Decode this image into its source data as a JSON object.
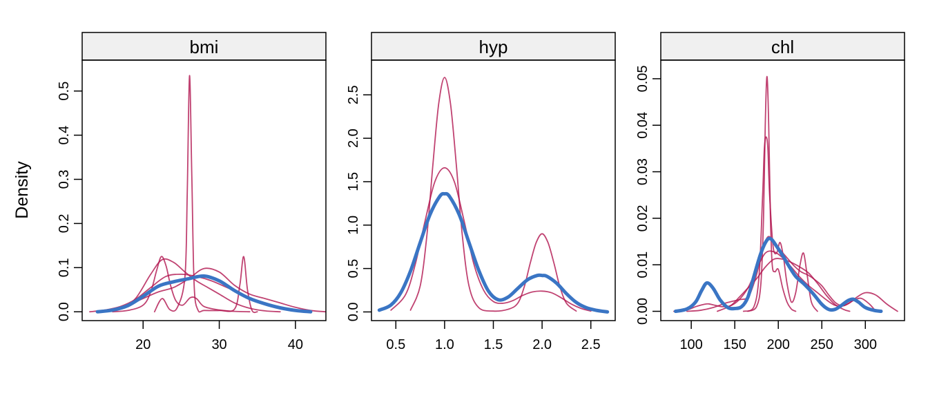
{
  "chart_data": {
    "type": "line",
    "ylabel": "Density",
    "colors": {
      "observed": "#3a75c4",
      "imputed": "#b0134d",
      "strip_fill": "#f0f0f0"
    },
    "panels": [
      {
        "title": "bmi",
        "xlim": [
          12,
          44
        ],
        "ylim": [
          -0.02,
          0.57
        ],
        "xticks": [
          20,
          30,
          40
        ],
        "xtick_labels": [
          "20",
          "30",
          "40"
        ],
        "yticks": [
          0.0,
          0.1,
          0.2,
          0.3,
          0.4,
          0.5
        ],
        "ytick_labels": [
          "0.0",
          "0.1",
          "0.2",
          "0.3",
          "0.4",
          "0.5"
        ],
        "series": [
          {
            "role": "observed",
            "x": [
              14,
              16,
              18,
              20,
              22,
              24,
              26,
              28,
              30,
              32,
              34,
              36,
              38,
              40,
              42
            ],
            "y": [
              0.0,
              0.004,
              0.014,
              0.035,
              0.058,
              0.068,
              0.075,
              0.081,
              0.07,
              0.048,
              0.03,
              0.018,
              0.009,
              0.003,
              0.0
            ]
          },
          {
            "role": "imputed",
            "x": [
              21.5,
              22.5,
              23.5,
              24.5,
              25.5,
              25.8,
              26.1,
              26.4,
              26.7,
              27.2,
              28,
              30,
              32,
              32.7,
              33.2,
              33.7,
              34.3,
              35
            ],
            "y": [
              0.0,
              0.03,
              0.005,
              0.01,
              0.08,
              0.27,
              0.535,
              0.3,
              0.06,
              0.004,
              0.003,
              0.003,
              0.006,
              0.06,
              0.125,
              0.05,
              0.003,
              0.0
            ]
          },
          {
            "role": "imputed",
            "x": [
              16,
              18,
              20,
              21,
              21.8,
              22.4,
              23,
              23.6,
              24.3,
              25.2,
              26.2,
              27,
              28,
              30,
              32,
              34
            ],
            "y": [
              0.0,
              0.003,
              0.015,
              0.045,
              0.095,
              0.125,
              0.105,
              0.06,
              0.025,
              0.015,
              0.032,
              0.03,
              0.012,
              0.004,
              0.001,
              0.0
            ]
          },
          {
            "role": "imputed",
            "x": [
              15,
              17,
              19,
              21,
              22.5,
              24,
              25.5,
              27,
              28.5,
              30,
              32,
              34,
              36,
              38
            ],
            "y": [
              0.0,
              0.006,
              0.03,
              0.085,
              0.118,
              0.112,
              0.09,
              0.07,
              0.055,
              0.04,
              0.02,
              0.008,
              0.002,
              0.0
            ]
          },
          {
            "role": "imputed",
            "x": [
              14,
              16,
              18,
              20,
              22,
              24,
              26,
              28,
              30,
              32,
              34,
              36,
              38,
              40,
              42,
              44
            ],
            "y": [
              0.0,
              0.005,
              0.015,
              0.03,
              0.045,
              0.055,
              0.075,
              0.098,
              0.09,
              0.06,
              0.04,
              0.03,
              0.02,
              0.01,
              0.003,
              0.0
            ]
          },
          {
            "role": "imputed",
            "x": [
              13,
              15,
              17,
              19,
              21,
              23,
              25,
              27,
              29,
              31,
              33,
              35,
              37,
              39,
              41
            ],
            "y": [
              0.0,
              0.004,
              0.012,
              0.028,
              0.055,
              0.08,
              0.085,
              0.08,
              0.07,
              0.055,
              0.04,
              0.025,
              0.012,
              0.004,
              0.0
            ]
          }
        ]
      },
      {
        "title": "hyp",
        "xlim": [
          0.25,
          2.75
        ],
        "ylim": [
          -0.1,
          2.9
        ],
        "xticks": [
          0.5,
          1.0,
          1.5,
          2.0,
          2.5
        ],
        "xtick_labels": [
          "0.5",
          "1.0",
          "1.5",
          "2.0",
          "2.5"
        ],
        "yticks": [
          0.0,
          0.5,
          1.0,
          1.5,
          2.0,
          2.5
        ],
        "ytick_labels": [
          "0.0",
          "0.5",
          "1.0",
          "1.5",
          "2.0",
          "2.5"
        ],
        "series": [
          {
            "role": "observed",
            "x": [
              0.33,
              0.45,
              0.55,
              0.65,
              0.75,
              0.85,
              0.95,
              1.0,
              1.05,
              1.15,
              1.25,
              1.35,
              1.45,
              1.55,
              1.65,
              1.75,
              1.85,
              1.95,
              2.0,
              2.05,
              2.15,
              2.25,
              2.35,
              2.45,
              2.55,
              2.67
            ],
            "y": [
              0.02,
              0.08,
              0.22,
              0.47,
              0.8,
              1.12,
              1.33,
              1.36,
              1.33,
              1.12,
              0.8,
              0.48,
              0.24,
              0.14,
              0.17,
              0.27,
              0.37,
              0.42,
              0.42,
              0.41,
              0.33,
              0.21,
              0.11,
              0.05,
              0.02,
              0.0
            ]
          },
          {
            "role": "imputed",
            "x": [
              0.65,
              0.75,
              0.82,
              0.88,
              0.94,
              1.0,
              1.06,
              1.12,
              1.18,
              1.25,
              1.35,
              1.5,
              1.65,
              1.75,
              1.82,
              1.88,
              1.94,
              2.0,
              2.06,
              2.12,
              2.18,
              2.25,
              2.35
            ],
            "y": [
              0.02,
              0.3,
              0.9,
              1.7,
              2.4,
              2.7,
              2.4,
              1.7,
              0.9,
              0.3,
              0.05,
              0.01,
              0.03,
              0.1,
              0.3,
              0.57,
              0.8,
              0.9,
              0.8,
              0.57,
              0.3,
              0.1,
              0.01
            ]
          },
          {
            "role": "imputed",
            "x": [
              0.45,
              0.6,
              0.7,
              0.8,
              0.9,
              1.0,
              1.1,
              1.2,
              1.3,
              1.4,
              1.5,
              1.6,
              1.7,
              1.8,
              1.9,
              2.0,
              2.1,
              2.2,
              2.3,
              2.4,
              2.5
            ],
            "y": [
              0.02,
              0.2,
              0.55,
              1.05,
              1.5,
              1.66,
              1.5,
              1.05,
              0.55,
              0.25,
              0.12,
              0.1,
              0.13,
              0.19,
              0.23,
              0.24,
              0.22,
              0.16,
              0.09,
              0.04,
              0.01
            ]
          }
        ]
      },
      {
        "title": "chl",
        "xlim": [
          65,
          345
        ],
        "ylim": [
          -0.002,
          0.054
        ],
        "xticks": [
          100,
          150,
          200,
          250,
          300
        ],
        "xtick_labels": [
          "100",
          "150",
          "200",
          "250",
          "300"
        ],
        "yticks": [
          0.0,
          0.01,
          0.02,
          0.03,
          0.04,
          0.05
        ],
        "ytick_labels": [
          "0.00",
          "0.01",
          "0.02",
          "0.03",
          "0.04",
          "0.05"
        ],
        "series": [
          {
            "role": "observed",
            "x": [
              82,
              95,
              105,
              112,
              118,
              125,
              133,
              142,
              150,
              158,
              165,
              172,
              180,
              187,
              192,
              198,
              205,
              212,
              220,
              230,
              240,
              250,
              258,
              265,
              272,
              280,
              286,
              292,
              300,
              310,
              318
            ],
            "y": [
              0.0,
              0.0005,
              0.002,
              0.0045,
              0.0061,
              0.005,
              0.0025,
              0.0008,
              0.0006,
              0.001,
              0.003,
              0.0075,
              0.0125,
              0.0153,
              0.0155,
              0.014,
              0.012,
              0.0098,
              0.0075,
              0.0058,
              0.0038,
              0.0015,
              0.0004,
              0.0004,
              0.0012,
              0.0023,
              0.0026,
              0.002,
              0.0008,
              0.0002,
              0.0
            ]
          },
          {
            "role": "imputed",
            "x": [
              165,
              175,
              180,
              183,
              185,
              187,
              189,
              191,
              193,
              196,
              200,
              205,
              210,
              215,
              220
            ],
            "y": [
              0.0,
              0.001,
              0.006,
              0.02,
              0.04,
              0.0505,
              0.04,
              0.02,
              0.01,
              0.0085,
              0.009,
              0.005,
              0.002,
              0.0005,
              0.0
            ]
          },
          {
            "role": "imputed",
            "x": [
              160,
              172,
              178,
              182,
              184,
              186,
              188,
              190,
              194,
              198,
              202,
              206,
              210,
              215,
              220,
              225,
              229,
              233,
              238,
              245
            ],
            "y": [
              0.0,
              0.001,
              0.008,
              0.025,
              0.035,
              0.0375,
              0.035,
              0.025,
              0.014,
              0.0125,
              0.0148,
              0.0115,
              0.006,
              0.002,
              0.004,
              0.01,
              0.0125,
              0.008,
              0.002,
              0.0
            ]
          },
          {
            "role": "imputed",
            "x": [
              80,
              95,
              105,
              115,
              120,
              125,
              135,
              145,
              155,
              165,
              175,
              185,
              195,
              205,
              215,
              225,
              235,
              245,
              255,
              265,
              275,
              285,
              295,
              305,
              312
            ],
            "y": [
              0.0,
              0.0003,
              0.001,
              0.0015,
              0.0016,
              0.0014,
              0.001,
              0.0012,
              0.0025,
              0.005,
              0.009,
              0.0125,
              0.0128,
              0.0115,
              0.0095,
              0.0073,
              0.0055,
              0.004,
              0.0025,
              0.0013,
              0.0012,
              0.0022,
              0.0028,
              0.0015,
              0.0
            ]
          },
          {
            "role": "imputed",
            "x": [
              95,
              110,
              125,
              140,
              155,
              165,
              172,
              178,
              183,
              188,
              193,
              198,
              203,
              210,
              218,
              226,
              234,
              242,
              250,
              258,
              266,
              274,
              282,
              290,
              300,
              312,
              325,
              337
            ],
            "y": [
              0.0,
              0.0002,
              0.0008,
              0.0018,
              0.0025,
              0.003,
              0.006,
              0.01,
              0.014,
              0.016,
              0.0155,
              0.0142,
              0.013,
              0.0115,
              0.0098,
              0.0085,
              0.0078,
              0.0068,
              0.0055,
              0.0035,
              0.0018,
              0.0012,
              0.0018,
              0.003,
              0.004,
              0.0035,
              0.0015,
              0.0
            ]
          },
          {
            "role": "imputed",
            "x": [
              130,
              145,
              155,
              165,
              175,
              185,
              195,
              205,
              215,
              225,
              235,
              245,
              255,
              265,
              275,
              282
            ],
            "y": [
              0.0,
              0.0012,
              0.003,
              0.005,
              0.007,
              0.0095,
              0.0112,
              0.0112,
              0.0105,
              0.0095,
              0.0082,
              0.006,
              0.0035,
              0.0015,
              0.0004,
              0.0
            ]
          }
        ]
      }
    ]
  }
}
